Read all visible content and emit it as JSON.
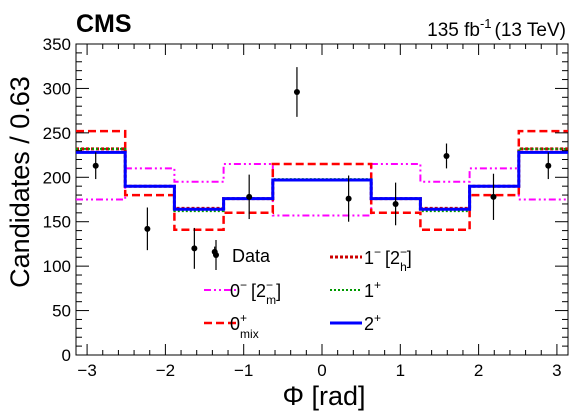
{
  "header": {
    "experiment": "CMS",
    "luminosity": "135 fb",
    "luminosity_exp": "-1",
    "energy": "(13 TeV)"
  },
  "chart_data": {
    "type": "histogram",
    "xlabel": "Φ [rad]",
    "ylabel": "Candidates / 0.63",
    "xlim": [
      -3.1416,
      3.1416
    ],
    "ylim": [
      0,
      350
    ],
    "xticks": [
      -3,
      -2,
      -1,
      0,
      1,
      2,
      3
    ],
    "yticks": [
      0,
      50,
      100,
      150,
      200,
      250,
      300,
      350
    ],
    "bin_edges": [
      -3.1416,
      -2.5133,
      -1.885,
      -1.2566,
      -0.6283,
      0.6283,
      1.2566,
      1.885,
      2.5133,
      3.1416
    ],
    "data": {
      "name": "Data",
      "points": [
        {
          "x": -2.89,
          "y": 213,
          "err": 15
        },
        {
          "x": -2.23,
          "y": 142,
          "err": 24
        },
        {
          "x": -1.63,
          "y": 120,
          "err": 23
        },
        {
          "x": -1.37,
          "y": 116,
          "err": 6
        },
        {
          "x": -0.93,
          "y": 178,
          "err": 25
        },
        {
          "x": -0.32,
          "y": 296,
          "err": 28
        },
        {
          "x": 0.34,
          "y": 176,
          "err": 26
        },
        {
          "x": 0.94,
          "y": 170,
          "err": 24
        },
        {
          "x": 1.59,
          "y": 224,
          "err": 14
        },
        {
          "x": 2.19,
          "y": 178,
          "err": 26
        },
        {
          "x": 2.89,
          "y": 213,
          "err": 15
        }
      ]
    },
    "series": [
      {
        "name": "0⁻ [2⁻ m]",
        "label_main": "0",
        "label_sup": "−",
        "label_bracket": "[2",
        "label_bsup": "−",
        "label_bsub": "m",
        "color": "#ff00ff",
        "style": "dash-dot-dot",
        "values": [
          175,
          210,
          195,
          215,
          157,
          215,
          195,
          210,
          175
        ]
      },
      {
        "name": "0+ mix",
        "label_main": "0",
        "label_sup": "+",
        "label_sub": "mix",
        "color": "#ff0000",
        "style": "dashed",
        "values": [
          252,
          180,
          141,
          160,
          215,
          160,
          141,
          180,
          252
        ]
      },
      {
        "name": "1⁻ [2⁻ h]",
        "label_main": "1",
        "label_sup": "−",
        "label_bracket": "[2",
        "label_bsup": "−",
        "label_bsub": "h",
        "color": "#cc0000",
        "style": "dotted",
        "values": [
          232,
          190,
          165,
          176,
          197,
          176,
          165,
          190,
          232
        ]
      },
      {
        "name": "1+",
        "label_main": "1",
        "label_sup": "+",
        "color": "#009900",
        "style": "dotted-fine",
        "values": [
          232,
          190,
          162,
          176,
          198,
          176,
          162,
          190,
          232
        ]
      },
      {
        "name": "2+",
        "label_main": "2",
        "label_sup": "+",
        "color": "#0000ff",
        "style": "solid",
        "values": [
          228,
          190,
          164,
          176,
          197,
          176,
          164,
          190,
          228
        ]
      }
    ],
    "legend_position": "lower-center"
  }
}
